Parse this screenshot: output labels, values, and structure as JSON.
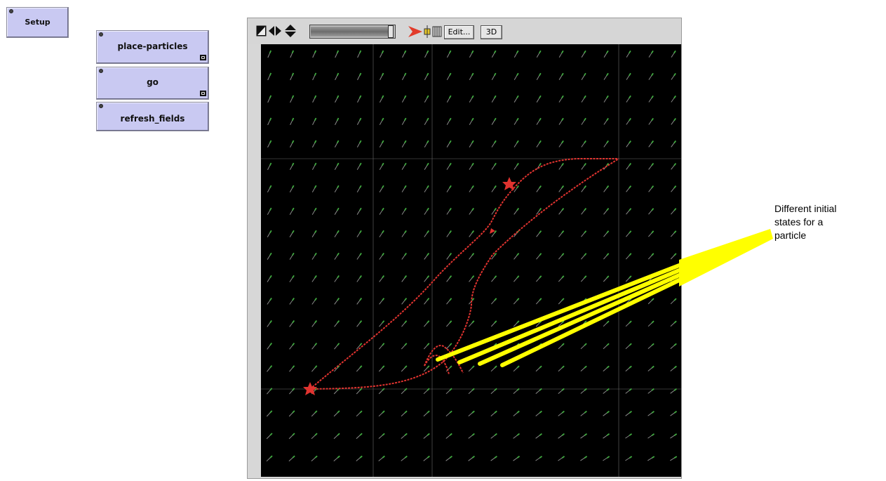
{
  "buttons": {
    "setup": "Setup",
    "place_particles": "place-particles",
    "go": "go",
    "refresh_fields": "refresh_fields"
  },
  "view_toolbar": {
    "edit_label": "Edit...",
    "three_d_label": "3D",
    "speed_slider_position": 0.95
  },
  "annotation": {
    "lines": [
      "Different initial",
      "states for a",
      "particle"
    ]
  },
  "colors": {
    "button_bg": "#c9c9f2",
    "view_bg": "#000000",
    "vector_color": "#3fa93f",
    "trajectory_color": "#e0332f",
    "annotation_pointer": "#ffff00"
  },
  "icons": {
    "cursor": "arrow-cursor-icon",
    "horizontal": "horizontal-scroll-icon",
    "vertical": "vertical-scroll-icon",
    "step": "red-arrow-icon",
    "patch": "patch-icon"
  }
}
